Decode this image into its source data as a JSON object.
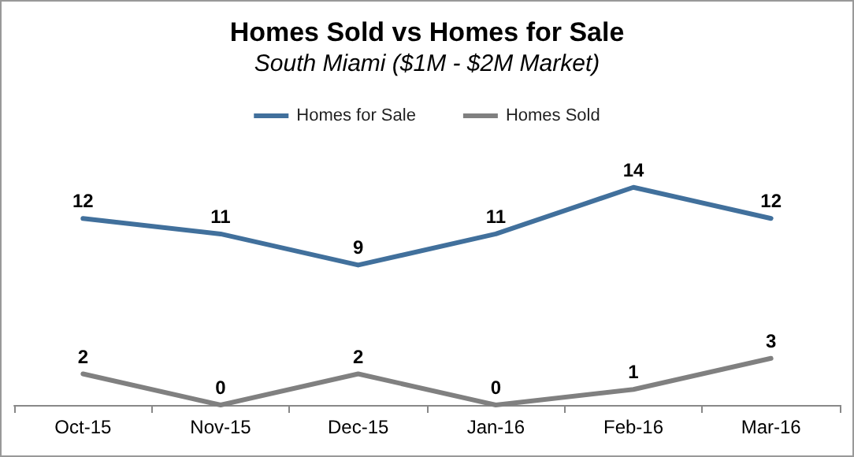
{
  "chart_data": {
    "type": "line",
    "title": "Homes Sold vs Homes for Sale",
    "subtitle": "South Miami ($1M - $2M Market)",
    "categories": [
      "Oct-15",
      "Nov-15",
      "Dec-15",
      "Jan-16",
      "Feb-16",
      "Mar-16"
    ],
    "series": [
      {
        "name": "Homes for Sale",
        "color": "#41709c",
        "values": [
          12,
          11,
          9,
          11,
          14,
          12
        ]
      },
      {
        "name": "Homes Sold",
        "color": "#808080",
        "values": [
          2,
          0,
          2,
          0,
          1,
          3
        ]
      }
    ],
    "data_labels": true,
    "legend": "top",
    "grid": false,
    "marker": "none",
    "line_style": "solid"
  }
}
